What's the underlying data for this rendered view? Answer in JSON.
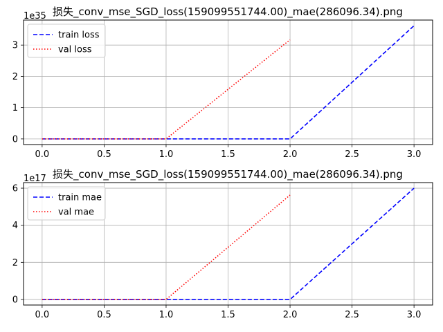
{
  "chart_data": [
    {
      "type": "line",
      "title": "损失_conv_mse_SGD_loss(159099551744.00)_mae(286096.34).png",
      "xlabel": "",
      "ylabel": "",
      "xlim": [
        -0.15,
        3.15
      ],
      "ylim": [
        -0.18,
        3.8
      ],
      "x_ticks": [
        0.0,
        0.5,
        1.0,
        1.5,
        2.0,
        2.5,
        3.0
      ],
      "x_tick_labels": [
        "0.0",
        "0.5",
        "1.0",
        "1.5",
        "2.0",
        "2.5",
        "3.0"
      ],
      "y_ticks": [
        0,
        1,
        2,
        3
      ],
      "y_tick_labels": [
        "0",
        "1",
        "2",
        "3"
      ],
      "y_offset_label": "1e35",
      "grid": true,
      "legend_position": "upper-left",
      "series": [
        {
          "name": "train loss",
          "color": "#0000ff",
          "linestyle": "dashed",
          "x": [
            0,
            1,
            2,
            3
          ],
          "y": [
            0,
            0,
            0,
            3.62
          ]
        },
        {
          "name": "val loss",
          "color": "#ff0000",
          "linestyle": "dotted",
          "x": [
            0,
            1,
            2
          ],
          "y": [
            0,
            0,
            3.17
          ]
        }
      ]
    },
    {
      "type": "line",
      "title": "损失_conv_mse_SGD_loss(159099551744.00)_mae(286096.34).png",
      "xlabel": "",
      "ylabel": "",
      "xlim": [
        -0.15,
        3.15
      ],
      "ylim": [
        -0.3,
        6.3
      ],
      "x_ticks": [
        0.0,
        0.5,
        1.0,
        1.5,
        2.0,
        2.5,
        3.0
      ],
      "x_tick_labels": [
        "0.0",
        "0.5",
        "1.0",
        "1.5",
        "2.0",
        "2.5",
        "3.0"
      ],
      "y_ticks": [
        0,
        2,
        4,
        6
      ],
      "y_tick_labels": [
        "0",
        "2",
        "4",
        "6"
      ],
      "y_offset_label": "1e17",
      "grid": true,
      "legend_position": "upper-left",
      "series": [
        {
          "name": "train mae",
          "color": "#0000ff",
          "linestyle": "dashed",
          "x": [
            0,
            1,
            2,
            3
          ],
          "y": [
            0,
            0,
            0,
            6.0
          ]
        },
        {
          "name": "val mae",
          "color": "#ff0000",
          "linestyle": "dotted",
          "x": [
            0,
            1,
            2
          ],
          "y": [
            0,
            0,
            5.63
          ]
        }
      ]
    }
  ]
}
